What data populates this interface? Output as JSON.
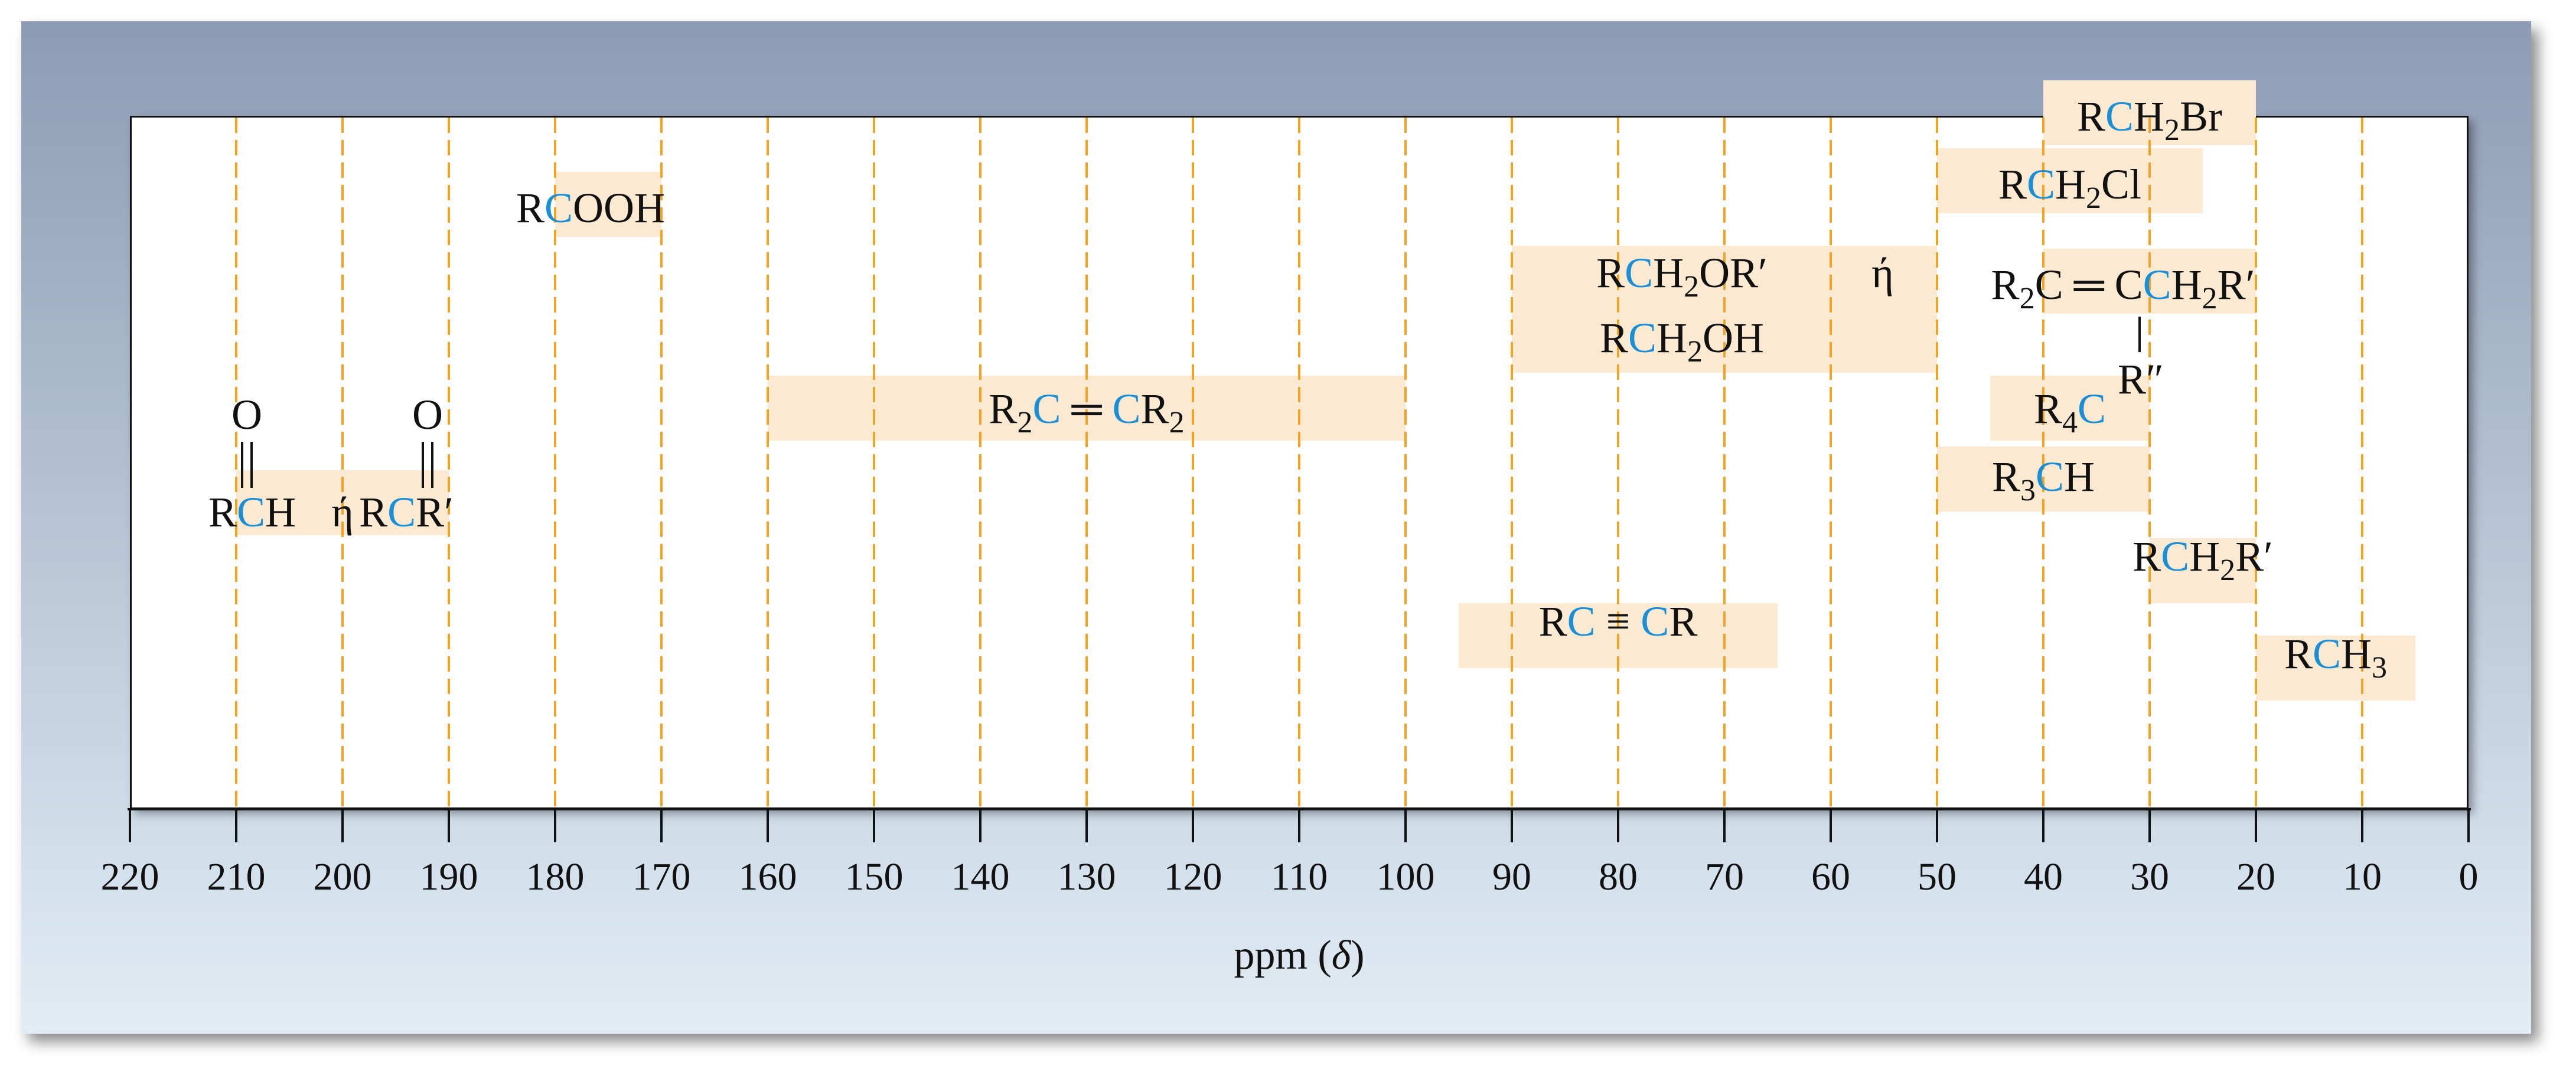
{
  "chart_data": {
    "type": "range",
    "axis": {
      "xlim": [
        220,
        0
      ],
      "ticks": [
        220,
        210,
        200,
        190,
        180,
        170,
        160,
        150,
        140,
        130,
        120,
        110,
        100,
        90,
        80,
        70,
        60,
        50,
        40,
        30,
        20,
        10,
        0
      ],
      "tick_labels": [
        "220",
        "210",
        "200",
        "190",
        "180",
        "170",
        "160",
        "150",
        "140",
        "130",
        "120",
        "110",
        "100",
        "90",
        "80",
        "70",
        "60",
        "50",
        "40",
        "30",
        "20",
        "10",
        "0"
      ],
      "xlabel_prefix": "ppm (",
      "xlabel_symbol": "δ",
      "xlabel_suffix": ")",
      "gridlines": [
        210,
        200,
        190,
        180,
        170,
        160,
        150,
        140,
        130,
        120,
        110,
        100,
        90,
        80,
        70,
        60,
        50,
        40,
        30,
        20,
        10
      ]
    },
    "colors": {
      "range_band": "#fbe9d2",
      "gridline": "#f0a427",
      "highlight_carbon": "#1b8fd6",
      "text": "#111111"
    },
    "ranges": [
      {
        "id": "rch2br",
        "parts": [
          [
            "R",
            "n"
          ],
          [
            "C",
            "b"
          ],
          [
            "H",
            "n"
          ],
          [
            "2",
            "s"
          ],
          [
            "Br",
            "n"
          ]
        ],
        "min": 20,
        "max": 40
      },
      {
        "id": "rch2cl",
        "parts": [
          [
            "R",
            "n"
          ],
          [
            "C",
            "b"
          ],
          [
            "H",
            "n"
          ],
          [
            "2",
            "s"
          ],
          [
            "Cl",
            "n"
          ]
        ],
        "min": 25,
        "max": 50
      },
      {
        "id": "rcooh",
        "parts": [
          [
            "R",
            "n"
          ],
          [
            "C",
            "b"
          ],
          [
            "OOH",
            "n"
          ]
        ],
        "min": 170,
        "max": 180
      },
      {
        "id": "allylic",
        "parts": [
          [
            "R",
            "n"
          ],
          [
            "2",
            "s"
          ],
          [
            "C",
            "n"
          ],
          [
            " ═ ",
            "n"
          ],
          [
            "C",
            "n"
          ],
          [
            "C",
            "b"
          ],
          [
            "H",
            "n"
          ],
          [
            "2",
            "s"
          ],
          [
            "R′",
            "n"
          ]
        ],
        "branch": "R″",
        "min": 20,
        "max": 40
      },
      {
        "id": "ether",
        "parts": [
          [
            "R",
            "n"
          ],
          [
            "C",
            "b"
          ],
          [
            "H",
            "n"
          ],
          [
            "2",
            "s"
          ],
          [
            "OR′",
            "n"
          ]
        ],
        "connector": "ή",
        "parts2": [
          [
            "R",
            "n"
          ],
          [
            "C",
            "b"
          ],
          [
            "H",
            "n"
          ],
          [
            "2",
            "s"
          ],
          [
            "OH",
            "n"
          ]
        ],
        "min": 50,
        "max": 90
      },
      {
        "id": "alkene",
        "parts": [
          [
            "R",
            "n"
          ],
          [
            "2",
            "s"
          ],
          [
            "C",
            "b"
          ],
          [
            " ═ ",
            "n"
          ],
          [
            "C",
            "b"
          ],
          [
            "R",
            "n"
          ],
          [
            "2",
            "s"
          ]
        ],
        "min": 100,
        "max": 160
      },
      {
        "id": "r4c",
        "parts": [
          [
            "R",
            "n"
          ],
          [
            "4",
            "s"
          ],
          [
            "C",
            "b"
          ]
        ],
        "min": 30,
        "max": 45
      },
      {
        "id": "carbonyl",
        "left_parts": [
          [
            "R",
            "n"
          ],
          [
            "C",
            "b"
          ],
          [
            "H",
            "n"
          ]
        ],
        "connector": "ή",
        "right_parts": [
          [
            "R",
            "n"
          ],
          [
            "C",
            "b"
          ],
          [
            "R′",
            "n"
          ]
        ],
        "oxygen": "O",
        "min": 190,
        "max": 210
      },
      {
        "id": "r3ch",
        "parts": [
          [
            "R",
            "n"
          ],
          [
            "3",
            "s"
          ],
          [
            "C",
            "b"
          ],
          [
            "H",
            "n"
          ]
        ],
        "min": 30,
        "max": 50
      },
      {
        "id": "rch2r",
        "parts": [
          [
            "R",
            "n"
          ],
          [
            "C",
            "b"
          ],
          [
            "H",
            "n"
          ],
          [
            "2",
            "s"
          ],
          [
            "R′",
            "n"
          ]
        ],
        "min": 20,
        "max": 30
      },
      {
        "id": "alkyne",
        "parts": [
          [
            "R",
            "n"
          ],
          [
            "C",
            "b"
          ],
          [
            " ≡ ",
            "n"
          ],
          [
            "C",
            "b"
          ],
          [
            "R",
            "n"
          ]
        ],
        "min": 65,
        "max": 95
      },
      {
        "id": "rch3",
        "parts": [
          [
            "R",
            "n"
          ],
          [
            "C",
            "b"
          ],
          [
            "H",
            "n"
          ],
          [
            "3",
            "s"
          ]
        ],
        "min": 5,
        "max": 20
      }
    ]
  }
}
